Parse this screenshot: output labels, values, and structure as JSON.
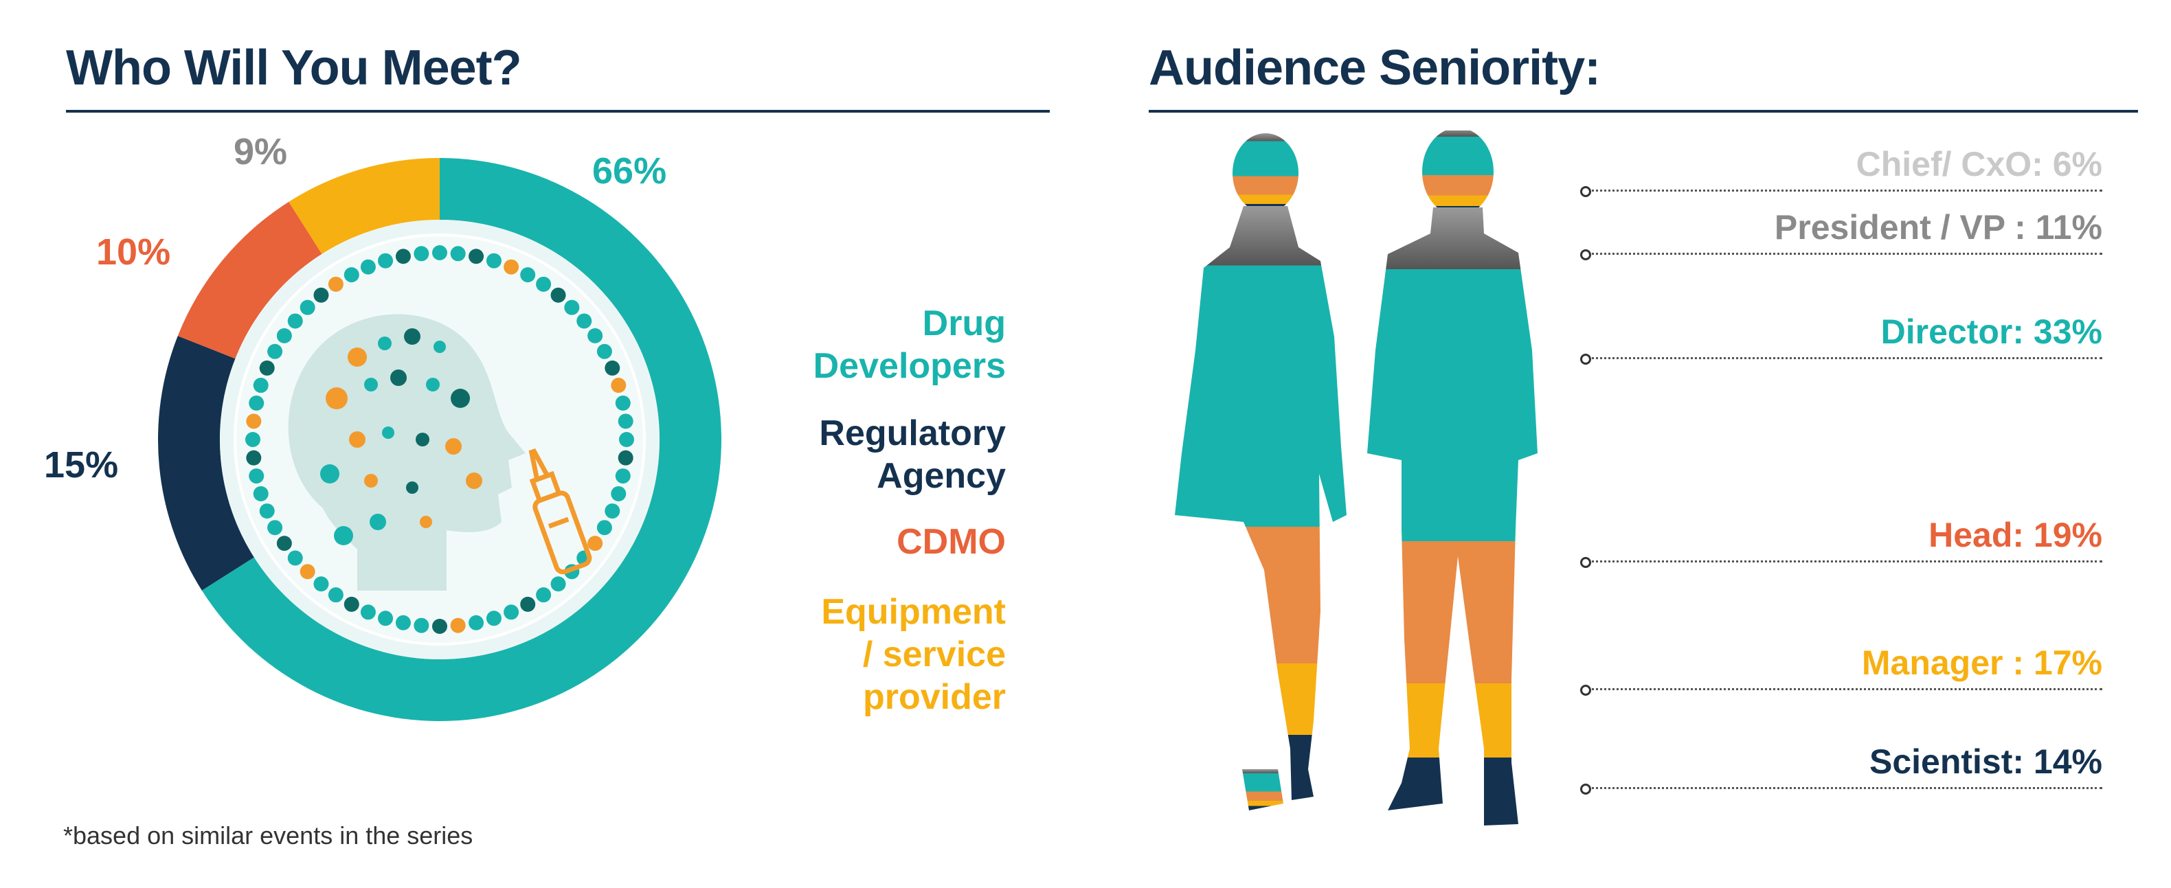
{
  "left_panel": {
    "title": "Who Will You Meet?",
    "footnote": "*based on similar events in the series"
  },
  "right_panel": {
    "title": "Audience Seniority:"
  },
  "colors": {
    "teal": "#19b3ad",
    "navy": "#14324f",
    "orange": "#e8623a",
    "amber": "#f7b012",
    "gray": "#8a8a8a",
    "light_gray": "#c9c9c9",
    "seniority_orange": "#e98a45"
  },
  "chart_data": [
    {
      "type": "pie",
      "title": "Who Will You Meet?",
      "slices": [
        {
          "label": "Drug Developers",
          "value": 66,
          "display": "66%",
          "color": "#19b3ad"
        },
        {
          "label": "Regulatory Agency",
          "value": 15,
          "display": "15%",
          "color": "#14324f"
        },
        {
          "label": "CDMO",
          "value": 10,
          "display": "10%",
          "color": "#e8623a"
        },
        {
          "label": "Equipment / service provider",
          "value": 9,
          "display": "9%",
          "color": "#f7b012"
        }
      ],
      "legend": [
        {
          "lines": [
            "Drug",
            "Developers"
          ],
          "color": "#19b3ad"
        },
        {
          "lines": [
            "Regulatory",
            "Agency"
          ],
          "color": "#14324f"
        },
        {
          "lines": [
            "CDMO"
          ],
          "color": "#e8623a"
        },
        {
          "lines": [
            "Equipment",
            "/ service",
            "provider"
          ],
          "color": "#f7b012"
        }
      ],
      "legend_position": "right"
    },
    {
      "type": "bar",
      "title": "Audience Seniority:",
      "categories": [
        "Chief/ CxO",
        "President / VP",
        "Director",
        "Head",
        "Manager",
        "Scientist"
      ],
      "values": [
        6,
        11,
        33,
        19,
        17,
        14
      ],
      "labels": [
        "Chief/ CxO: 6%",
        "President / VP : 11%",
        "Director: 33%",
        "Head: 19%",
        "Manager : 17%",
        "Scientist: 14%"
      ],
      "colors": [
        "#c9c9c9",
        "#8a8a8a",
        "#19b3ad",
        "#e8623a",
        "#f7b012",
        "#14324f"
      ]
    }
  ]
}
